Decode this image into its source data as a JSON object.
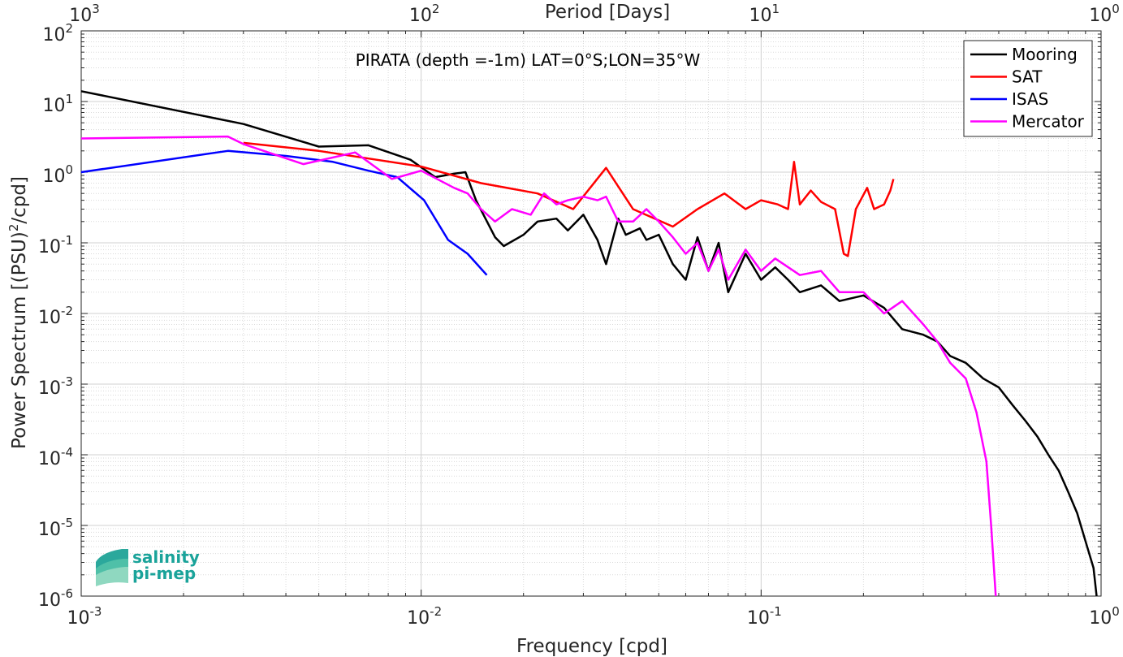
{
  "chart_data": {
    "type": "line",
    "title": "PIRATA (depth =-1m) LAT=0°S;LON=35°W",
    "xlabel": "Frequency [cpd]",
    "ylabel": "Power Spectrum [(PSU)",
    "ylabel_exp": "2",
    "ylabel_tail": "/cpd]",
    "top_xlabel": "Period [Days]",
    "xscale": "log",
    "yscale": "log",
    "xlim": [
      0.001,
      1
    ],
    "ylim": [
      1e-06,
      100
    ],
    "grid": true,
    "legend_position": "top-right",
    "x_ticks": [
      {
        "base": "10",
        "exp": "-3"
      },
      {
        "base": "10",
        "exp": "-2"
      },
      {
        "base": "10",
        "exp": "-1"
      },
      {
        "base": "10",
        "exp": "0"
      }
    ],
    "y_ticks": [
      {
        "base": "10",
        "exp": "-6"
      },
      {
        "base": "10",
        "exp": "-5"
      },
      {
        "base": "10",
        "exp": "-4"
      },
      {
        "base": "10",
        "exp": "-3"
      },
      {
        "base": "10",
        "exp": "-2"
      },
      {
        "base": "10",
        "exp": "-1"
      },
      {
        "base": "10",
        "exp": "0"
      },
      {
        "base": "10",
        "exp": "1"
      },
      {
        "base": "10",
        "exp": "2"
      }
    ],
    "top_ticks": [
      {
        "base": "10",
        "exp": "3"
      },
      {
        "base": "10",
        "exp": "2"
      },
      {
        "base": "10",
        "exp": "1"
      },
      {
        "base": "10",
        "exp": "0"
      }
    ],
    "series": [
      {
        "name": "Mooring",
        "color": "#000000",
        "x": [
          0.001,
          0.003,
          0.005,
          0.007,
          0.0093,
          0.011,
          0.0125,
          0.0135,
          0.0145,
          0.0165,
          0.0175,
          0.02,
          0.022,
          0.025,
          0.027,
          0.03,
          0.033,
          0.035,
          0.038,
          0.04,
          0.044,
          0.046,
          0.05,
          0.055,
          0.06,
          0.065,
          0.07,
          0.075,
          0.08,
          0.09,
          0.1,
          0.11,
          0.12,
          0.13,
          0.15,
          0.17,
          0.2,
          0.23,
          0.26,
          0.3,
          0.33,
          0.36,
          0.4,
          0.45,
          0.5,
          0.55,
          0.6,
          0.65,
          0.7,
          0.75,
          0.8,
          0.85,
          0.9,
          0.95,
          0.97
        ],
        "y": [
          14,
          4.8,
          2.3,
          2.4,
          1.5,
          0.85,
          0.95,
          1.0,
          0.4,
          0.12,
          0.09,
          0.13,
          0.2,
          0.22,
          0.15,
          0.25,
          0.11,
          0.05,
          0.22,
          0.13,
          0.16,
          0.11,
          0.13,
          0.05,
          0.03,
          0.12,
          0.04,
          0.1,
          0.02,
          0.07,
          0.03,
          0.045,
          0.03,
          0.02,
          0.025,
          0.015,
          0.018,
          0.012,
          0.006,
          0.005,
          0.004,
          0.0025,
          0.002,
          0.0012,
          0.0009,
          0.0005,
          0.0003,
          0.00018,
          0.0001,
          6e-05,
          3e-05,
          1.5e-05,
          6e-06,
          2.5e-06,
          1e-06
        ]
      },
      {
        "name": "SAT",
        "color": "#ff0000",
        "x": [
          0.003,
          0.005,
          0.01,
          0.015,
          0.022,
          0.028,
          0.035,
          0.042,
          0.055,
          0.065,
          0.078,
          0.09,
          0.1,
          0.112,
          0.12,
          0.125,
          0.13,
          0.14,
          0.15,
          0.165,
          0.175,
          0.18,
          0.19,
          0.205,
          0.215,
          0.23,
          0.24,
          0.245
        ],
        "y": [
          2.6,
          2.0,
          1.2,
          0.7,
          0.5,
          0.3,
          1.15,
          0.3,
          0.17,
          0.3,
          0.5,
          0.3,
          0.4,
          0.35,
          0.3,
          1.4,
          0.35,
          0.55,
          0.38,
          0.3,
          0.07,
          0.065,
          0.3,
          0.6,
          0.3,
          0.35,
          0.55,
          0.8
        ]
      },
      {
        "name": "ISAS",
        "color": "#0000ff",
        "x": [
          0.001,
          0.0027,
          0.004,
          0.0055,
          0.007,
          0.0085,
          0.0102,
          0.012,
          0.0137,
          0.0156
        ],
        "y": [
          1.0,
          2.0,
          1.7,
          1.4,
          1.05,
          0.85,
          0.4,
          0.11,
          0.07,
          0.035
        ]
      },
      {
        "name": "Mercator",
        "color": "#ff00ff",
        "x": [
          0.001,
          0.0027,
          0.003,
          0.0045,
          0.0064,
          0.0082,
          0.01,
          0.0125,
          0.0137,
          0.015,
          0.0165,
          0.0185,
          0.021,
          0.023,
          0.025,
          0.027,
          0.03,
          0.033,
          0.035,
          0.038,
          0.042,
          0.046,
          0.05,
          0.055,
          0.06,
          0.065,
          0.07,
          0.075,
          0.08,
          0.09,
          0.1,
          0.11,
          0.13,
          0.15,
          0.17,
          0.2,
          0.23,
          0.26,
          0.3,
          0.33,
          0.36,
          0.4,
          0.43,
          0.46,
          0.475,
          0.49
        ],
        "y": [
          3.0,
          3.2,
          2.5,
          1.3,
          1.9,
          0.8,
          1.05,
          0.6,
          0.5,
          0.3,
          0.2,
          0.3,
          0.25,
          0.5,
          0.35,
          0.4,
          0.45,
          0.4,
          0.45,
          0.2,
          0.2,
          0.3,
          0.2,
          0.12,
          0.07,
          0.1,
          0.04,
          0.08,
          0.03,
          0.08,
          0.04,
          0.06,
          0.035,
          0.04,
          0.02,
          0.02,
          0.01,
          0.015,
          0.007,
          0.004,
          0.002,
          0.0012,
          0.0004,
          8e-05,
          1e-05,
          1e-06
        ]
      }
    ]
  },
  "logo": {
    "line1": "salinity",
    "line2": "pi-mep",
    "accent": "#1aa39a"
  }
}
